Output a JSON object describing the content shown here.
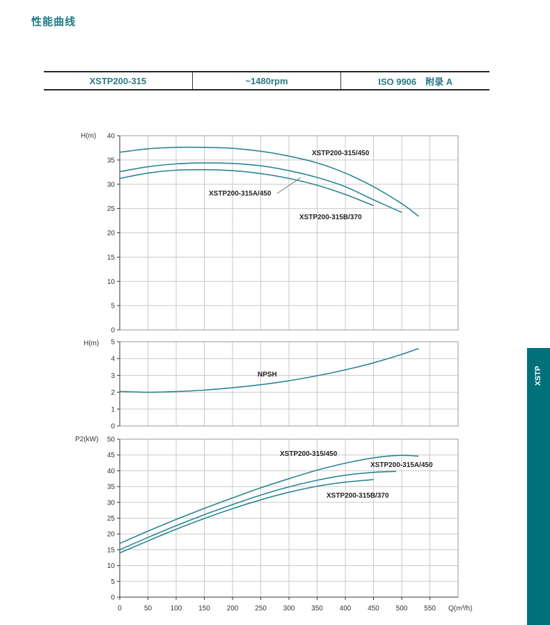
{
  "page": {
    "title": "性能曲线"
  },
  "spec": {
    "model": "XSTP200-315",
    "speed": "~1480rpm",
    "standard": "ISO 9906　附录 A"
  },
  "side_tab": {
    "label": "XSTP"
  },
  "chart_data": [
    {
      "type": "line",
      "ylabel": "H(m)",
      "xlim": [
        0,
        600
      ],
      "ylim": [
        0,
        40
      ],
      "yticks": [
        0,
        5,
        10,
        15,
        20,
        25,
        30,
        35,
        40
      ],
      "grid": true,
      "series": [
        {
          "name": "XSTP200-315/450",
          "x": [
            0,
            50,
            100,
            150,
            200,
            250,
            300,
            350,
            400,
            450,
            500,
            530
          ],
          "y": [
            36.6,
            37.3,
            37.6,
            37.6,
            37.4,
            36.8,
            35.8,
            34.4,
            32.3,
            29.5,
            26.0,
            23.4
          ]
        },
        {
          "name": "XSTP200-315A/450",
          "x": [
            0,
            50,
            100,
            150,
            200,
            250,
            300,
            350,
            400,
            450,
            500
          ],
          "y": [
            32.6,
            33.6,
            34.2,
            34.4,
            34.3,
            33.8,
            32.8,
            31.4,
            29.5,
            26.8,
            24.2
          ]
        },
        {
          "name": "XSTP200-315B/370",
          "x": [
            0,
            50,
            100,
            150,
            200,
            250,
            300,
            350,
            400,
            450
          ],
          "y": [
            31.2,
            32.3,
            32.9,
            33.0,
            32.8,
            32.2,
            31.2,
            29.8,
            27.9,
            25.6
          ]
        }
      ]
    },
    {
      "type": "line",
      "ylabel": "H(m)",
      "xlim": [
        0,
        600
      ],
      "ylim": [
        0,
        5
      ],
      "yticks": [
        0,
        1,
        2,
        3,
        4,
        5
      ],
      "grid": true,
      "series": [
        {
          "name": "NPSH",
          "x": [
            0,
            50,
            100,
            150,
            200,
            250,
            300,
            350,
            400,
            450,
            500,
            530
          ],
          "y": [
            2.05,
            2.0,
            2.04,
            2.13,
            2.27,
            2.45,
            2.68,
            2.98,
            3.33,
            3.75,
            4.25,
            4.6
          ]
        }
      ]
    },
    {
      "type": "line",
      "ylabel": "P2(kW)",
      "xlabel": "Q(m³/h)",
      "xlim": [
        0,
        600
      ],
      "ylim": [
        0,
        50
      ],
      "xticks": [
        0,
        50,
        100,
        150,
        200,
        250,
        300,
        350,
        400,
        450,
        500,
        550
      ],
      "yticks": [
        0,
        5,
        10,
        15,
        20,
        25,
        30,
        35,
        40,
        45,
        50
      ],
      "grid": true,
      "series": [
        {
          "name": "XSTP200-315/450",
          "x": [
            0,
            50,
            100,
            150,
            200,
            250,
            300,
            350,
            400,
            450,
            500,
            530
          ],
          "y": [
            17.0,
            20.9,
            24.6,
            28.1,
            31.4,
            34.6,
            37.5,
            40.2,
            42.4,
            44.1,
            44.9,
            44.6
          ]
        },
        {
          "name": "XSTP200-315A/450",
          "x": [
            0,
            50,
            100,
            150,
            200,
            250,
            300,
            350,
            400,
            450,
            490
          ],
          "y": [
            15.0,
            18.9,
            22.6,
            26.1,
            29.3,
            32.3,
            34.9,
            37.0,
            38.6,
            39.5,
            39.8
          ]
        },
        {
          "name": "XSTP200-315B/370",
          "x": [
            0,
            50,
            100,
            150,
            200,
            250,
            300,
            350,
            400,
            450
          ],
          "y": [
            14.0,
            17.8,
            21.5,
            24.9,
            28.0,
            30.8,
            33.2,
            35.1,
            36.4,
            37.2
          ]
        }
      ]
    }
  ]
}
